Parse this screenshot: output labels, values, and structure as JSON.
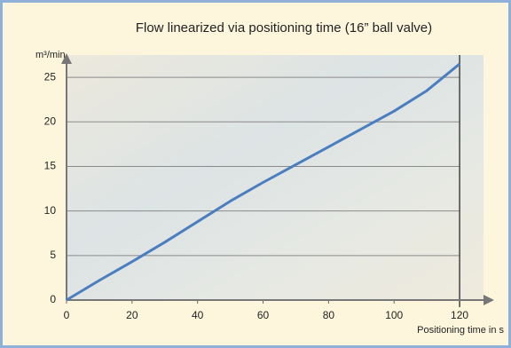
{
  "chart_data": {
    "type": "line",
    "title": "Flow linearized via positioning time (16” ball valve)",
    "y_label": "m³/min",
    "x_label": "Positioning time in s",
    "x": [
      0,
      10,
      20,
      30,
      40,
      50,
      60,
      70,
      80,
      90,
      100,
      110,
      115,
      120
    ],
    "values": [
      0,
      2.2,
      4.3,
      6.5,
      8.8,
      11.1,
      13.2,
      15.2,
      17.2,
      19.2,
      21.2,
      23.5,
      25,
      26.5
    ],
    "color": "#4a7ec0",
    "xlim": [
      0,
      130
    ],
    "ylim": [
      0,
      27.5
    ],
    "xticks": [
      0,
      20,
      40,
      60,
      80,
      100,
      120
    ],
    "yticks": [
      0,
      5,
      10,
      15,
      20,
      25
    ],
    "grid": true
  }
}
